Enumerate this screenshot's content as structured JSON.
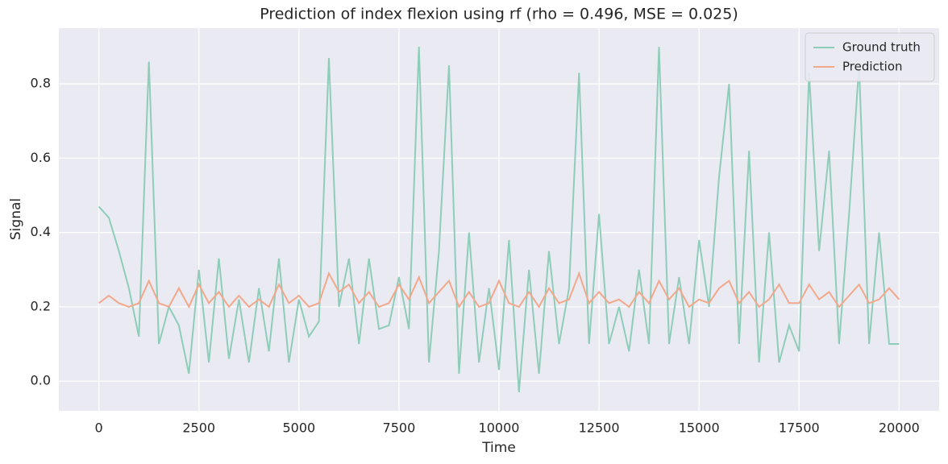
{
  "chart_data": {
    "type": "line",
    "title": "Prediction of index flexion using rf (rho = 0.496, MSE = 0.025)",
    "x_label": "Time",
    "y_label": "Signal",
    "x": [
      0,
      250,
      500,
      750,
      1000,
      1250,
      1500,
      1750,
      2000,
      2250,
      2500,
      2750,
      3000,
      3250,
      3500,
      3750,
      4000,
      4250,
      4500,
      4750,
      5000,
      5250,
      5500,
      5750,
      6000,
      6250,
      6500,
      6750,
      7000,
      7250,
      7500,
      7750,
      8000,
      8250,
      8500,
      8750,
      9000,
      9250,
      9500,
      9750,
      10000,
      10250,
      10500,
      10750,
      11000,
      11250,
      11500,
      11750,
      12000,
      12250,
      12500,
      12750,
      13000,
      13250,
      13500,
      13750,
      14000,
      14250,
      14500,
      14750,
      15000,
      15250,
      15500,
      15750,
      16000,
      16250,
      16500,
      16750,
      17000,
      17250,
      17500,
      17750,
      18000,
      18250,
      18500,
      18750,
      19000,
      19250,
      19500,
      19750,
      20000
    ],
    "series": [
      {
        "name": "Ground truth",
        "color": "#8ecdb9",
        "values": [
          0.47,
          0.44,
          0.35,
          0.25,
          0.12,
          0.86,
          0.1,
          0.2,
          0.15,
          0.02,
          0.3,
          0.05,
          0.33,
          0.06,
          0.22,
          0.05,
          0.25,
          0.08,
          0.33,
          0.05,
          0.22,
          0.12,
          0.16,
          0.87,
          0.2,
          0.33,
          0.1,
          0.33,
          0.14,
          0.15,
          0.28,
          0.14,
          0.9,
          0.05,
          0.35,
          0.85,
          0.02,
          0.4,
          0.05,
          0.25,
          0.03,
          0.38,
          -0.03,
          0.3,
          0.02,
          0.35,
          0.1,
          0.25,
          0.83,
          0.1,
          0.45,
          0.1,
          0.2,
          0.08,
          0.3,
          0.1,
          0.9,
          0.1,
          0.28,
          0.1,
          0.38,
          0.2,
          0.55,
          0.8,
          0.1,
          0.62,
          0.05,
          0.4,
          0.05,
          0.15,
          0.08,
          0.83,
          0.35,
          0.62,
          0.1,
          0.45,
          0.85,
          0.1,
          0.4,
          0.1,
          0.1
        ]
      },
      {
        "name": "Prediction",
        "color": "#f2a88a",
        "values": [
          0.21,
          0.23,
          0.21,
          0.2,
          0.21,
          0.27,
          0.21,
          0.2,
          0.25,
          0.2,
          0.26,
          0.21,
          0.24,
          0.2,
          0.23,
          0.2,
          0.22,
          0.2,
          0.26,
          0.21,
          0.23,
          0.2,
          0.21,
          0.29,
          0.24,
          0.26,
          0.21,
          0.24,
          0.2,
          0.21,
          0.26,
          0.22,
          0.28,
          0.21,
          0.24,
          0.27,
          0.2,
          0.24,
          0.2,
          0.21,
          0.27,
          0.21,
          0.2,
          0.24,
          0.2,
          0.25,
          0.21,
          0.22,
          0.29,
          0.21,
          0.24,
          0.21,
          0.22,
          0.2,
          0.24,
          0.21,
          0.27,
          0.22,
          0.25,
          0.2,
          0.22,
          0.21,
          0.25,
          0.27,
          0.21,
          0.24,
          0.2,
          0.22,
          0.26,
          0.21,
          0.21,
          0.26,
          0.22,
          0.24,
          0.2,
          0.23,
          0.26,
          0.21,
          0.22,
          0.25,
          0.22
        ]
      }
    ],
    "xlim": [
      -1000,
      21000
    ],
    "ylim": [
      -0.08,
      0.95
    ],
    "xticks": [
      0,
      2500,
      5000,
      7500,
      10000,
      12500,
      15000,
      17500,
      20000
    ],
    "yticks": [
      {
        "value": 0,
        "label": "0.0"
      },
      0.2,
      0.4,
      0.6,
      0.8
    ],
    "grid": true,
    "legend": "upper right"
  }
}
